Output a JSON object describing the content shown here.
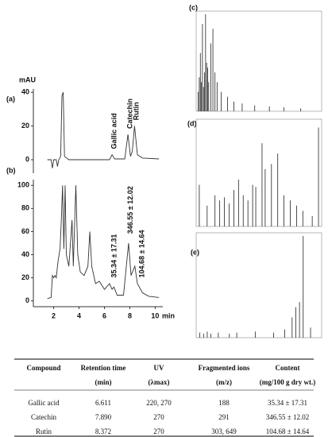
{
  "chromatograms": {
    "unit": "mAU",
    "x_unit": "min",
    "xlim": [
      0.4,
      10.6
    ],
    "xticks": [
      2,
      4,
      6,
      8,
      10
    ],
    "panels": [
      {
        "label": "(a)",
        "ylim": [
          -8,
          42
        ],
        "yticks": [
          0,
          20,
          40
        ],
        "x": [
          1.5,
          1.8,
          1.9,
          2.0,
          2.2,
          2.3,
          2.4,
          2.55,
          2.65,
          2.75,
          2.85,
          3.2,
          6.4,
          6.6,
          6.8,
          7.6,
          7.85,
          8.05,
          8.2,
          8.37,
          8.6,
          9,
          10.3
        ],
        "values": [
          0,
          0,
          -5,
          0,
          0,
          -4,
          0,
          2,
          38,
          40,
          2,
          0,
          0,
          3,
          0.5,
          0.5,
          15,
          2,
          5,
          20,
          3,
          1,
          0.5
        ],
        "annotations": [
          {
            "text": "Gallic acid",
            "x": 6.6,
            "y": 5
          },
          {
            "text": "Catechin",
            "x": 7.85,
            "y": 17
          },
          {
            "text": "Rutin",
            "x": 8.37,
            "y": 22
          }
        ]
      },
      {
        "label": "(b)",
        "ylim": [
          -5,
          105
        ],
        "yticks": [
          0,
          20,
          40,
          60,
          80,
          100
        ],
        "x": [
          1.5,
          1.8,
          1.9,
          2.0,
          2.1,
          2.2,
          2.35,
          2.5,
          2.6,
          2.7,
          2.8,
          2.9,
          3.0,
          3.2,
          3.45,
          3.55,
          3.75,
          3.9,
          4.1,
          4.4,
          4.7,
          4.85,
          5.0,
          5.3,
          5.6,
          6.0,
          6.4,
          6.6,
          6.75,
          7.0,
          7.5,
          7.9,
          8.1,
          8.4,
          8.6,
          9,
          9.5,
          10.3
        ],
        "values": [
          2,
          3,
          22,
          20,
          22,
          20,
          35,
          45,
          70,
          100,
          45,
          100,
          40,
          30,
          70,
          30,
          100,
          40,
          25,
          22,
          30,
          60,
          30,
          15,
          17,
          10,
          15,
          10,
          12,
          5,
          5,
          50,
          22,
          30,
          15,
          7,
          4,
          3
        ],
        "annotations": [
          {
            "text": "35.34 ± 17.31",
            "x": 6.6,
            "y": 18
          },
          {
            "text": "346.55 ± 12.02",
            "x": 7.9,
            "y": 56
          },
          {
            "text": "104.68 ± 14.64",
            "x": 8.8,
            "y": 18
          }
        ]
      }
    ]
  },
  "spectra": [
    {
      "label": "(c)",
      "xlim": [
        100,
        700
      ],
      "ylim": [
        0,
        100
      ],
      "mz": [
        110,
        115,
        120,
        125,
        130,
        135,
        140,
        145,
        150,
        155,
        160,
        170,
        180,
        190,
        200,
        220,
        250,
        280,
        320,
        380,
        450,
        520,
        600
      ],
      "intensity": [
        20,
        35,
        60,
        30,
        90,
        25,
        40,
        100,
        50,
        45,
        30,
        70,
        85,
        40,
        30,
        20,
        15,
        10,
        8,
        6,
        5,
        4,
        3
      ]
    },
    {
      "label": "(d)",
      "xlim": [
        80,
        880
      ],
      "ylim": [
        0,
        100
      ],
      "mz": [
        100,
        150,
        200,
        230,
        260,
        290,
        320,
        350,
        380,
        410,
        440,
        460,
        500,
        520,
        560,
        600,
        640,
        680,
        720,
        760,
        820,
        860
      ],
      "intensity": [
        40,
        20,
        30,
        25,
        28,
        22,
        35,
        45,
        30,
        25,
        40,
        38,
        80,
        55,
        60,
        70,
        30,
        25,
        20,
        15,
        10,
        95
      ]
    },
    {
      "label": "(e)",
      "xlim": [
        80,
        760
      ],
      "ylim": [
        0,
        100
      ],
      "mz": [
        100,
        120,
        140,
        160,
        200,
        260,
        300,
        400,
        500,
        560,
        600,
        620,
        640,
        660,
        700
      ],
      "intensity": [
        5,
        4,
        6,
        4,
        5,
        4,
        5,
        6,
        5,
        8,
        20,
        30,
        35,
        100,
        10
      ]
    }
  ],
  "table": {
    "header": [
      [
        "Compound",
        ""
      ],
      [
        "Retention time",
        "(min)"
      ],
      [
        "UV",
        "(λmax)"
      ],
      [
        "Fragmented ions",
        "(m/z)"
      ],
      [
        "Content",
        "(mg/100 g dry wt.)"
      ]
    ],
    "rows": [
      [
        "Gallic acid",
        "6.611",
        "220, 270",
        "188",
        "35.34 ± 17.31"
      ],
      [
        "Catechin",
        "7.890",
        "270",
        "291",
        "346.55 ± 12.02"
      ],
      [
        "Rutin",
        "8.372",
        "270",
        "303, 649",
        "104.68 ± 14.64"
      ]
    ]
  }
}
